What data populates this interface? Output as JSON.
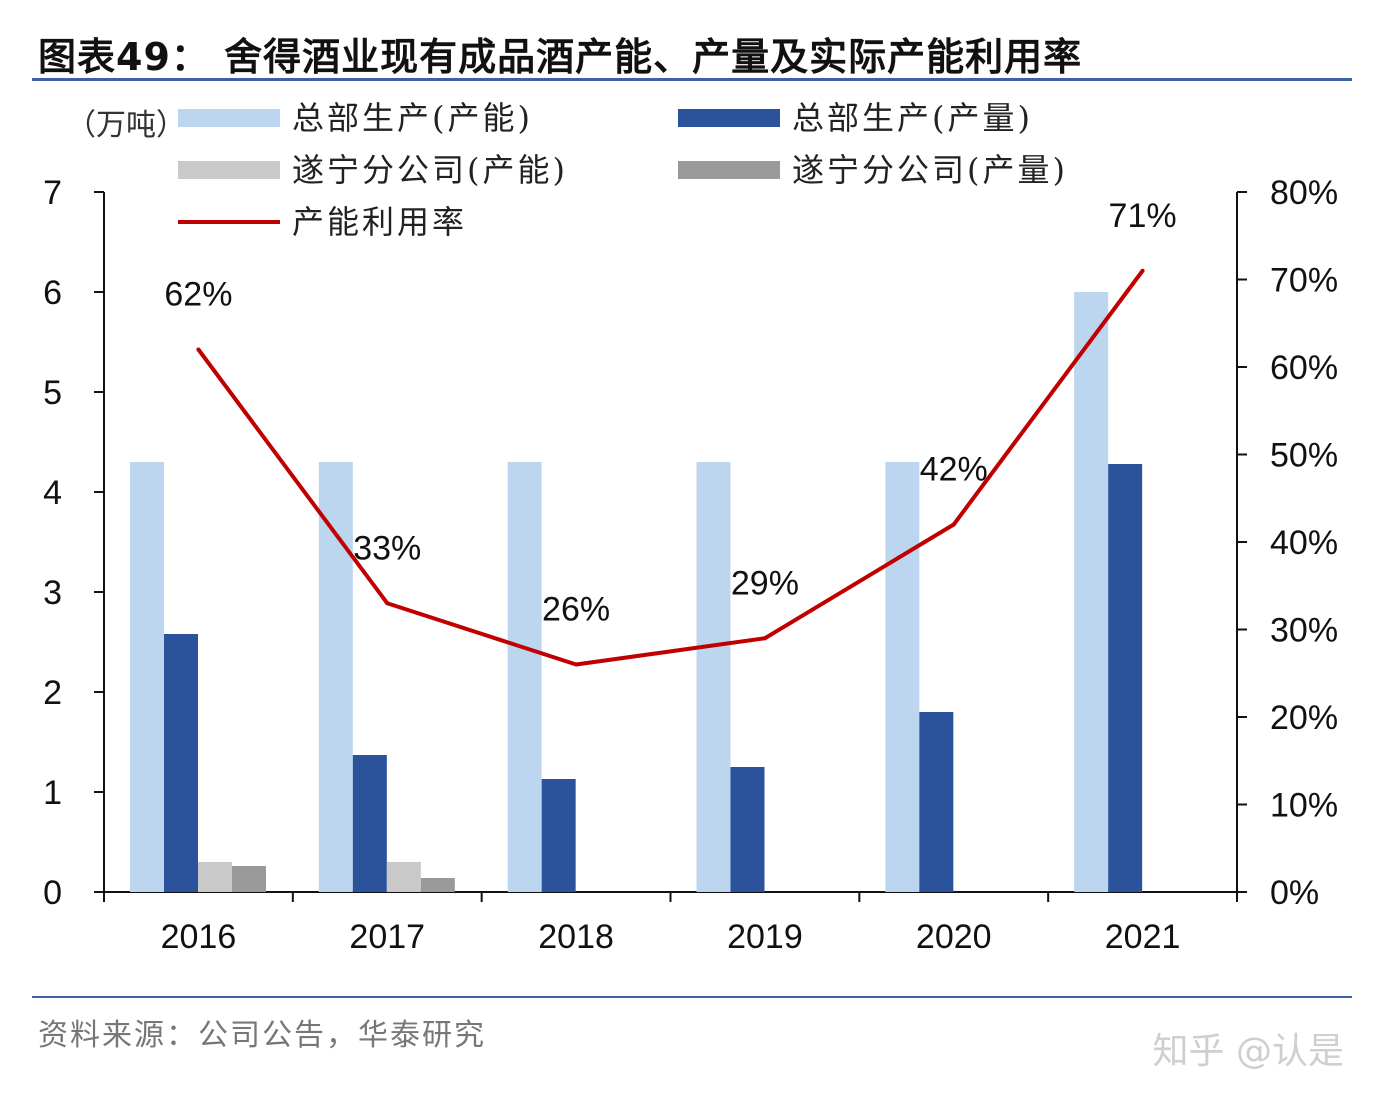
{
  "title": "图表49： 舍得酒业现有成品酒产能、产量及实际产能利用率",
  "source": "资料来源：公司公告，华泰研究",
  "watermark": "知乎 @认是",
  "colors": {
    "hq_capacity": "#bcd6f0",
    "hq_output": "#2b539c",
    "sn_capacity": "#c9c9c9",
    "sn_output": "#9a9a9a",
    "utilization": "#c00000",
    "rule": "#3f5fa8"
  },
  "chart_data": {
    "type": "bar",
    "unit_left": "（万吨）",
    "categories": [
      "2016",
      "2017",
      "2018",
      "2019",
      "2020",
      "2021"
    ],
    "series": [
      {
        "name": "总部生产(产能)",
        "type": "bar",
        "values": [
          4.3,
          4.3,
          4.3,
          4.3,
          4.3,
          6.0
        ]
      },
      {
        "name": "总部生产(产量)",
        "type": "bar",
        "values": [
          2.58,
          1.37,
          1.13,
          1.25,
          1.8,
          4.28
        ]
      },
      {
        "name": "遂宁分公司(产能)",
        "type": "bar",
        "values": [
          0.3,
          0.3,
          0,
          0,
          0,
          0
        ]
      },
      {
        "name": "遂宁分公司(产量)",
        "type": "bar",
        "values": [
          0.26,
          0.14,
          0,
          0,
          0,
          0
        ]
      },
      {
        "name": "产能利用率",
        "type": "line",
        "axis": "right",
        "values": [
          62,
          33,
          26,
          29,
          42,
          71
        ],
        "labels": [
          "62%",
          "33%",
          "26%",
          "29%",
          "42%",
          "71%"
        ]
      }
    ],
    "y_left": {
      "min": 0,
      "max": 7,
      "ticks": [
        "0",
        "1",
        "2",
        "3",
        "4",
        "5",
        "6",
        "7"
      ]
    },
    "y_right": {
      "min": 0,
      "max": 80,
      "ticks": [
        "0%",
        "10%",
        "20%",
        "30%",
        "40%",
        "50%",
        "60%",
        "70%",
        "80%"
      ]
    },
    "legend_position": "top"
  }
}
